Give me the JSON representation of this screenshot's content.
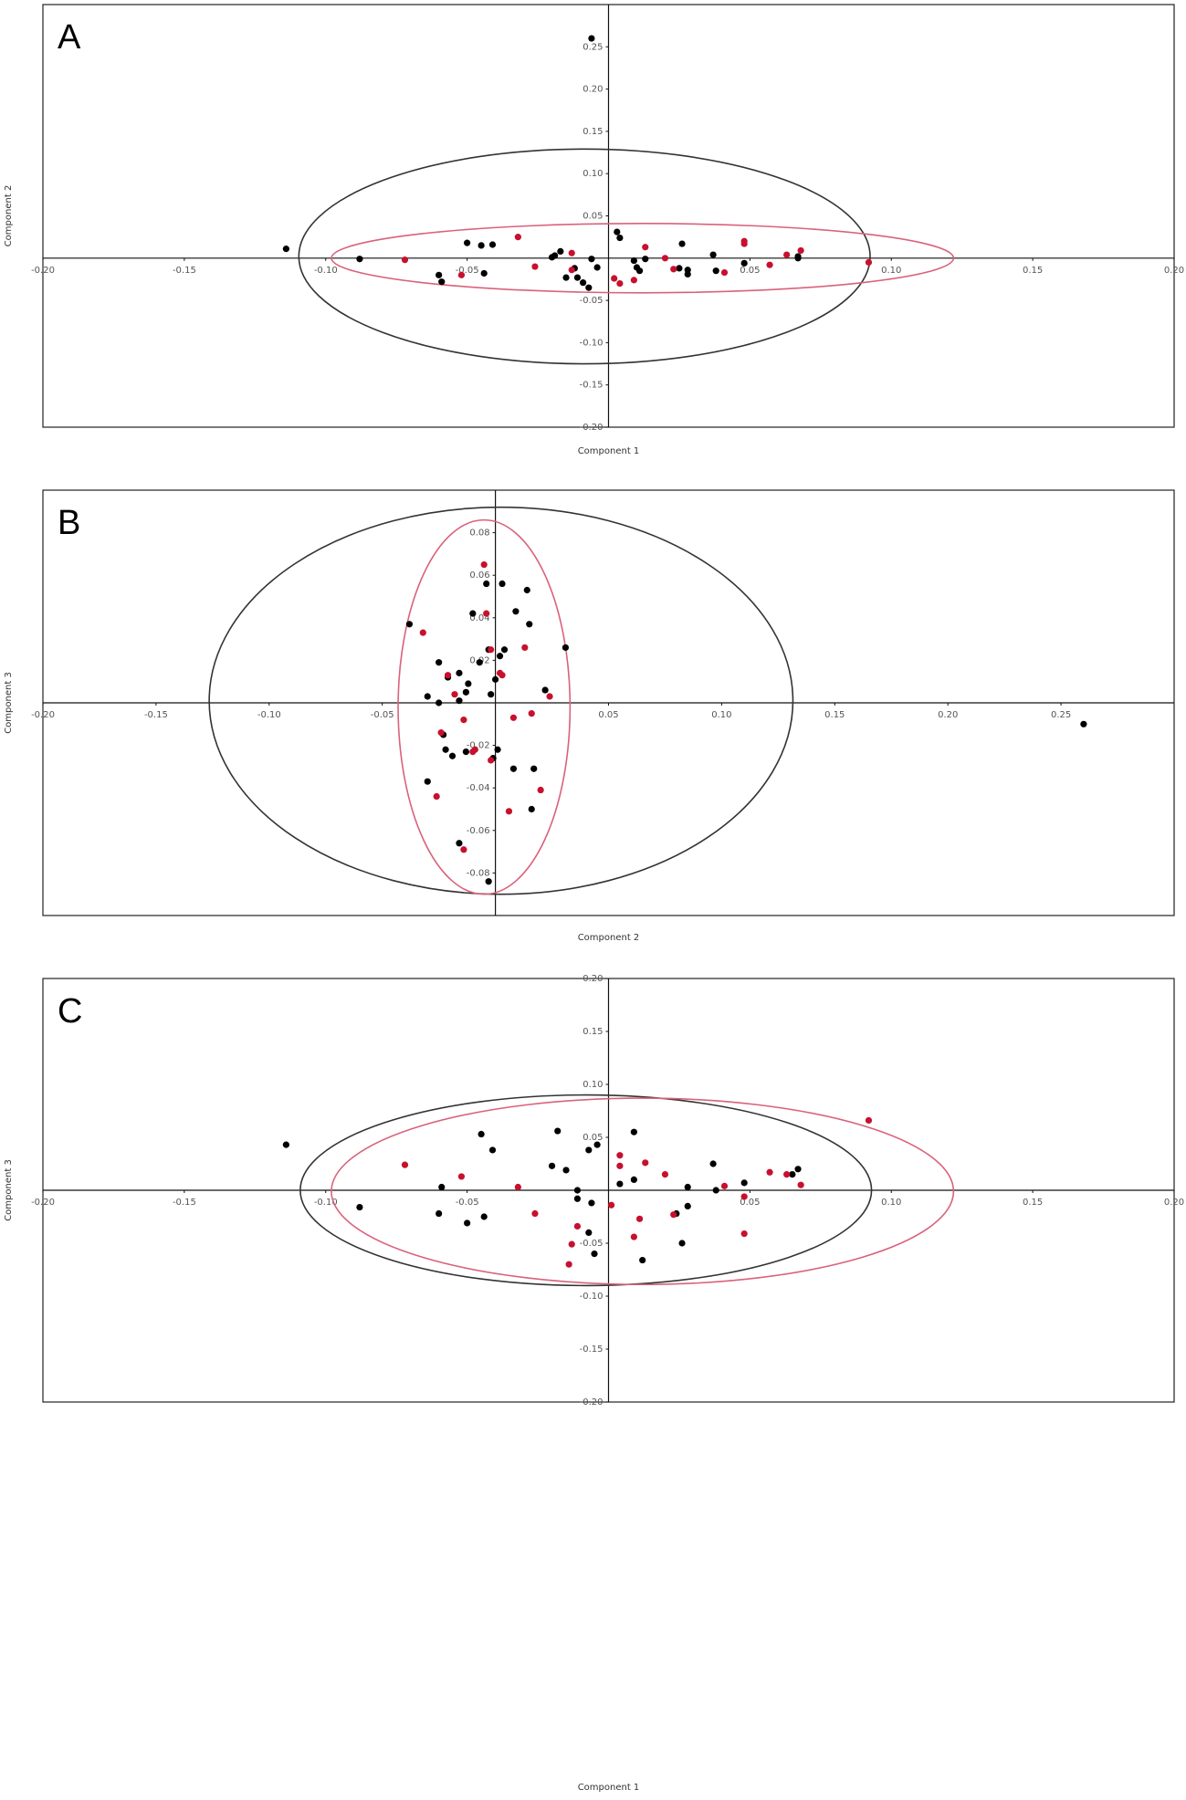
{
  "chart_data": [
    {
      "type": "scatter",
      "panel_label": "A",
      "xlabel": "Component 1",
      "ylabel": "Component 2",
      "xlim": [
        -0.2,
        0.2
      ],
      "ylim": [
        -0.2,
        0.3
      ],
      "xticks": [
        {
          "value": -0.2,
          "label": "-0.20"
        },
        -0.15,
        {
          "value": -0.1,
          "label": "-0.10"
        },
        -0.05,
        0.05,
        {
          "value": 0.1,
          "label": "0.10"
        },
        0.15,
        {
          "value": 0.2,
          "label": "0.20"
        }
      ],
      "yticks": [
        0.25,
        {
          "value": 0.2,
          "label": "0.20"
        },
        0.15,
        {
          "value": 0.1,
          "label": "0.10"
        },
        0.05,
        -0.05,
        {
          "value": -0.1,
          "label": "-0.10"
        },
        -0.15,
        {
          "value": -0.2,
          "label": "-0.20"
        }
      ],
      "series": [
        {
          "color": "#000000",
          "x": [
            -0.114,
            -0.006,
            -0.088,
            -0.05,
            -0.045,
            -0.041,
            -0.06,
            -0.059,
            -0.044,
            -0.02,
            -0.019,
            -0.017,
            -0.015,
            -0.012,
            -0.011,
            -0.009,
            -0.007,
            -0.006,
            -0.004,
            0.003,
            0.004,
            0.009,
            0.01,
            0.011,
            0.013,
            0.026,
            0.025,
            0.028,
            0.028,
            0.037,
            0.038,
            0.048,
            0.067,
            0.067
          ],
          "y": [
            0.011,
            0.26,
            -0.001,
            0.018,
            0.015,
            0.016,
            -0.02,
            -0.028,
            -0.018,
            0.001,
            0.003,
            0.008,
            -0.023,
            -0.012,
            -0.023,
            -0.029,
            -0.035,
            -0.001,
            -0.011,
            0.031,
            0.024,
            -0.003,
            -0.011,
            -0.015,
            -0.001,
            0.017,
            -0.012,
            -0.014,
            -0.019,
            0.004,
            -0.015,
            -0.006,
            0.0,
            0.002
          ]
        },
        {
          "color": "#c8102e",
          "x": [
            -0.072,
            -0.052,
            -0.032,
            -0.026,
            -0.013,
            -0.013,
            0.002,
            0.004,
            0.009,
            0.013,
            0.02,
            0.023,
            0.041,
            0.048,
            0.048,
            0.057,
            0.063,
            0.068,
            0.092
          ],
          "y": [
            -0.002,
            -0.02,
            0.025,
            -0.01,
            0.006,
            -0.014,
            -0.024,
            -0.03,
            -0.026,
            0.013,
            0.0,
            -0.013,
            -0.017,
            0.02,
            0.017,
            -0.008,
            0.004,
            0.009,
            -0.005
          ]
        }
      ],
      "ellipses": [
        {
          "color": "#333333",
          "cx": -0.0085,
          "cy": 0.002,
          "rx": 0.101,
          "ry": 0.127
        },
        {
          "color": "#d9627a",
          "cx": 0.012,
          "cy": 0.0,
          "rx": 0.11,
          "ry": 0.041
        }
      ]
    },
    {
      "type": "scatter",
      "panel_label": "B",
      "xlabel": "Component 2",
      "ylabel": "Component 3",
      "xlim": [
        -0.2,
        0.3
      ],
      "ylim": [
        -0.1,
        0.1
      ],
      "xticks": [
        {
          "value": -0.2,
          "label": "-0.20"
        },
        -0.15,
        {
          "value": -0.1,
          "label": "-0.10"
        },
        -0.05,
        0.05,
        {
          "value": 0.1,
          "label": "0.10"
        },
        0.15,
        {
          "value": 0.2,
          "label": "0.20"
        },
        0.25
      ],
      "yticks": [
        0.08,
        0.06,
        0.04,
        0.02,
        -0.02,
        -0.04,
        -0.06,
        -0.08
      ],
      "series": [
        {
          "color": "#000000",
          "x": [
            0.26,
            -0.038,
            -0.025,
            -0.03,
            -0.025,
            -0.021,
            -0.016,
            -0.016,
            -0.013,
            -0.012,
            -0.01,
            -0.007,
            -0.004,
            -0.003,
            -0.002,
            0.0,
            0.002,
            0.003,
            0.004,
            0.009,
            0.014,
            0.015,
            0.031,
            0.022,
            -0.023,
            -0.022,
            -0.019,
            -0.013,
            -0.001,
            0.001,
            -0.03,
            0.008,
            0.017,
            0.016,
            -0.016,
            -0.003
          ],
          "y": [
            -0.01,
            0.037,
            0.019,
            0.003,
            0.0,
            0.012,
            0.014,
            0.001,
            0.005,
            0.009,
            0.042,
            0.019,
            0.056,
            0.025,
            0.004,
            0.011,
            0.022,
            0.056,
            0.025,
            0.043,
            0.053,
            0.037,
            0.026,
            0.006,
            -0.015,
            -0.022,
            -0.025,
            -0.023,
            -0.026,
            -0.022,
            -0.037,
            -0.031,
            -0.031,
            -0.05,
            -0.066,
            -0.084
          ]
        },
        {
          "color": "#c8102e",
          "x": [
            -0.005,
            -0.032,
            -0.021,
            -0.018,
            -0.004,
            -0.002,
            0.002,
            0.003,
            0.013,
            0.024,
            0.008,
            0.016,
            -0.014,
            -0.024,
            -0.01,
            -0.009,
            -0.002,
            0.02,
            0.006,
            -0.026,
            -0.014
          ],
          "y": [
            0.065,
            0.033,
            0.013,
            0.004,
            0.042,
            0.025,
            0.014,
            0.013,
            0.026,
            0.003,
            -0.007,
            -0.005,
            -0.008,
            -0.014,
            -0.023,
            -0.022,
            -0.027,
            -0.041,
            -0.051,
            -0.044,
            -0.069
          ]
        }
      ],
      "ellipses": [
        {
          "color": "#333333",
          "cx": 0.0025,
          "cy": 0.001,
          "rx": 0.129,
          "ry": 0.091
        },
        {
          "color": "#d9627a",
          "cx": -0.005,
          "cy": -0.002,
          "rx": 0.038,
          "ry": 0.088
        }
      ]
    },
    {
      "type": "scatter",
      "panel_label": "C",
      "xlabel": "Component 1",
      "ylabel": "Component 3",
      "xlim": [
        -0.2,
        0.2
      ],
      "ylim": [
        -0.2,
        0.2
      ],
      "xticks": [
        {
          "value": -0.2,
          "label": "-0.20"
        },
        -0.15,
        {
          "value": -0.1,
          "label": "-0.10"
        },
        -0.05,
        0.05,
        {
          "value": 0.1,
          "label": "0.10"
        },
        0.15,
        {
          "value": 0.2,
          "label": "0.20"
        }
      ],
      "yticks": [
        {
          "value": 0.2,
          "label": "0.20"
        },
        0.15,
        {
          "value": 0.1,
          "label": "0.10"
        },
        0.05,
        -0.05,
        {
          "value": -0.1,
          "label": "-0.10"
        },
        -0.15,
        {
          "value": -0.2,
          "label": "-0.20"
        }
      ],
      "series": [
        {
          "color": "#000000",
          "x": [
            -0.114,
            -0.088,
            -0.059,
            -0.06,
            -0.05,
            -0.045,
            -0.041,
            -0.044,
            -0.018,
            -0.02,
            -0.015,
            -0.007,
            -0.004,
            -0.011,
            -0.011,
            -0.007,
            -0.005,
            -0.006,
            0.009,
            0.004,
            0.009,
            0.012,
            0.024,
            0.026,
            0.028,
            0.028,
            0.037,
            0.038,
            0.048,
            0.067,
            0.065
          ],
          "y": [
            0.043,
            -0.016,
            0.003,
            -0.022,
            -0.031,
            0.053,
            0.038,
            -0.025,
            0.056,
            0.023,
            0.019,
            0.038,
            0.043,
            0.0,
            -0.008,
            -0.04,
            -0.06,
            -0.012,
            0.055,
            0.006,
            0.01,
            -0.066,
            -0.022,
            -0.05,
            -0.015,
            0.003,
            0.025,
            0.0,
            0.007,
            0.02,
            0.015
          ]
        },
        {
          "color": "#c8102e",
          "x": [
            -0.072,
            -0.052,
            -0.032,
            -0.026,
            -0.013,
            -0.014,
            -0.011,
            0.001,
            0.004,
            0.004,
            0.011,
            0.009,
            0.013,
            0.02,
            0.023,
            0.041,
            0.048,
            0.048,
            0.057,
            0.063,
            0.068,
            0.092
          ],
          "y": [
            0.024,
            0.013,
            0.003,
            -0.022,
            -0.051,
            -0.07,
            -0.034,
            -0.014,
            0.033,
            0.023,
            -0.027,
            -0.044,
            0.026,
            0.015,
            -0.023,
            0.004,
            -0.006,
            -0.041,
            0.017,
            0.015,
            0.005,
            0.066
          ]
        }
      ],
      "ellipses": [
        {
          "color": "#333333",
          "cx": -0.008,
          "cy": 0.0,
          "rx": 0.101,
          "ry": 0.09
        },
        {
          "color": "#d9627a",
          "cx": 0.012,
          "cy": -0.001,
          "rx": 0.11,
          "ry": 0.088
        }
      ]
    }
  ]
}
